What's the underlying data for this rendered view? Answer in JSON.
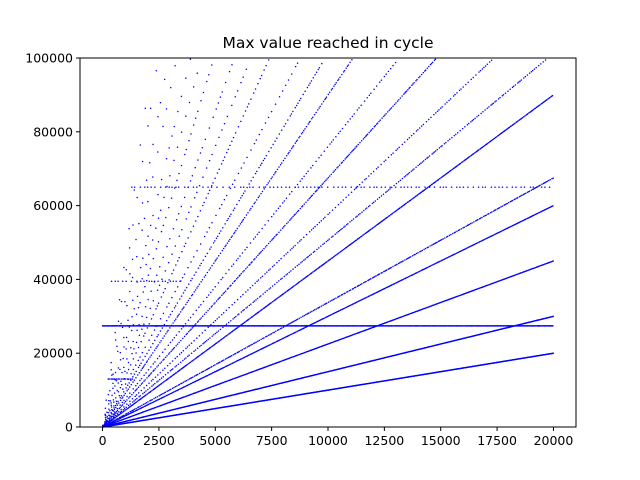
{
  "chart_data": {
    "type": "scatter",
    "title": "Max value reached in cycle",
    "xlabel": "",
    "ylabel": "",
    "xlim": [
      -1000,
      21000
    ],
    "ylim": [
      0,
      100000
    ],
    "xticks": [
      0,
      2500,
      5000,
      7500,
      10000,
      12500,
      15000,
      17500,
      20000
    ],
    "xtick_labels": [
      "0",
      "2500",
      "5000",
      "7500",
      "10000",
      "12500",
      "15000",
      "17500",
      "20000"
    ],
    "yticks": [
      0,
      20000,
      40000,
      60000,
      80000,
      100000
    ],
    "ytick_labels": [
      "0",
      "20000",
      "40000",
      "60000",
      "80000",
      "100000"
    ],
    "grid": false,
    "legend": "none",
    "marker_color": "#0000ff",
    "series": [
      {
        "slope": 1.0,
        "x_max": 20000,
        "step": 20
      },
      {
        "slope": 1.5,
        "x_max": 20000,
        "step": 25
      },
      {
        "slope": 2.25,
        "x_max": 20000,
        "step": 35
      },
      {
        "slope": 3.0,
        "x_max": 20000,
        "step": 40
      },
      {
        "slope": 3.375,
        "x_max": 20000,
        "step": 60
      },
      {
        "slope": 4.5,
        "x_max": 20000,
        "step": 40
      },
      {
        "slope": 5.0625,
        "x_max": 19700,
        "step": 80
      },
      {
        "slope": 5.76,
        "x_max": 17300,
        "step": 100
      },
      {
        "slope": 6.75,
        "x_max": 14800,
        "step": 60
      },
      {
        "slope": 7.6,
        "x_max": 13100,
        "step": 110
      },
      {
        "slope": 9.0,
        "x_max": 11100,
        "step": 60
      },
      {
        "slope": 10.125,
        "x_max": 9800,
        "step": 80
      },
      {
        "slope": 11.4,
        "x_max": 8700,
        "step": 130
      },
      {
        "slope": 13.5,
        "x_max": 7400,
        "step": 90
      },
      {
        "slope": 15.2,
        "x_max": 6500,
        "step": 140
      },
      {
        "slope": 17.1,
        "x_max": 5800,
        "step": 130
      },
      {
        "slope": 20.25,
        "x_max": 4900,
        "step": 110
      },
      {
        "slope": 22.8,
        "x_max": 4300,
        "step": 150
      },
      {
        "slope": 25.6,
        "x_max": 3900,
        "step": 160
      },
      {
        "slope": 30.4,
        "x_max": 3250,
        "step": 170
      },
      {
        "slope": 34.2,
        "x_max": 2900,
        "step": 180
      },
      {
        "slope": 40.5,
        "x_max": 2450,
        "step": 190
      },
      {
        "slope": 45.6,
        "x_max": 2150,
        "step": 200
      }
    ],
    "horizontal_bands": [
      {
        "y": 27400,
        "x_min": 0,
        "x_max": 20000,
        "step": 25
      },
      {
        "y": 65000,
        "x_min": 1300,
        "x_max": 20000,
        "step": 200
      },
      {
        "y": 39500,
        "x_min": 400,
        "x_max": 3500,
        "step": 180
      },
      {
        "y": 13000,
        "x_min": 250,
        "x_max": 1400,
        "step": 60
      }
    ]
  }
}
